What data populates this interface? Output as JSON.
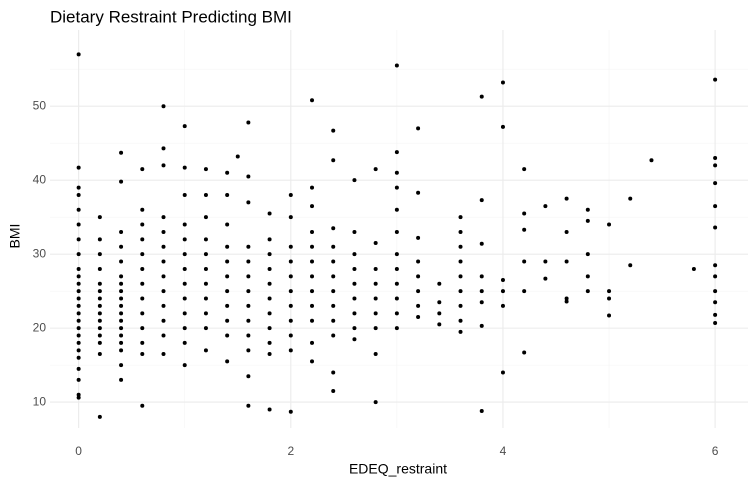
{
  "chart_data": {
    "type": "scatter",
    "title": "Dietary Restraint Predicting BMI",
    "x_label": "EDEQ_restraint",
    "y_label": "BMI",
    "color": "#000000",
    "grid": true,
    "xlim": [
      -0.27,
      6.31
    ],
    "ylim": [
      6.5,
      60.3
    ],
    "xticks": [
      0,
      2,
      4,
      6
    ],
    "yticks": [
      10,
      20,
      30,
      40,
      50
    ],
    "x": [
      0,
      0,
      0,
      0,
      0,
      0,
      0,
      0,
      0,
      0,
      0,
      0,
      0,
      0,
      0,
      0,
      0,
      0,
      0,
      0,
      0,
      0,
      0,
      0,
      0,
      0.2,
      0.2,
      0.2,
      0.2,
      0.2,
      0.2,
      0.2,
      0.2,
      0.2,
      0.2,
      0.2,
      0.2,
      0.2,
      0.2,
      0.2,
      0.4,
      0.4,
      0.4,
      0.4,
      0.4,
      0.4,
      0.4,
      0.4,
      0.4,
      0.4,
      0.4,
      0.4,
      0.4,
      0.4,
      0.4,
      0.4,
      0.4,
      0.4,
      0.6,
      0.6,
      0.6,
      0.6,
      0.6,
      0.6,
      0.6,
      0.6,
      0.6,
      0.6,
      0.6,
      0.6,
      0.6,
      0.8,
      0.8,
      0.8,
      0.8,
      0.8,
      0.8,
      0.8,
      0.8,
      0.8,
      0.8,
      0.8,
      0.8,
      0.8,
      1,
      1,
      1,
      1,
      1,
      1,
      1,
      1,
      1,
      1,
      1,
      1,
      1,
      1.2,
      1.2,
      1.2,
      1.2,
      1.2,
      1.2,
      1.2,
      1.2,
      1.2,
      1.2,
      1.2,
      1.4,
      1.4,
      1.4,
      1.4,
      1.4,
      1.4,
      1.4,
      1.4,
      1.4,
      1.4,
      1.4,
      1.5,
      1.6,
      1.6,
      1.6,
      1.6,
      1.6,
      1.6,
      1.6,
      1.6,
      1.6,
      1.6,
      1.6,
      1.6,
      1.6,
      1.8,
      1.8,
      1.8,
      1.8,
      1.8,
      1.8,
      1.8,
      1.8,
      1.8,
      1.8,
      1.8,
      2,
      2,
      2,
      2,
      2,
      2,
      2,
      2,
      2,
      2,
      2,
      2.2,
      2.2,
      2.2,
      2.2,
      2.2,
      2.2,
      2.2,
      2.2,
      2.2,
      2.2,
      2.2,
      2.2,
      2.4,
      2.4,
      2.4,
      2.4,
      2.4,
      2.4,
      2.4,
      2.4,
      2.4,
      2.4,
      2.4,
      2.4,
      2.6,
      2.6,
      2.6,
      2.6,
      2.6,
      2.6,
      2.6,
      2.6,
      2.6,
      2.8,
      2.8,
      2.8,
      2.8,
      2.8,
      2.8,
      2.8,
      2.8,
      2.8,
      3,
      3,
      3,
      3,
      3,
      3,
      3,
      3,
      3,
      3,
      3,
      3,
      3.2,
      3.2,
      3.2,
      3.2,
      3.2,
      3.2,
      3.2,
      3.2,
      3.4,
      3.4,
      3.4,
      3.4,
      3.6,
      3.6,
      3.6,
      3.6,
      3.6,
      3.6,
      3.6,
      3.6,
      3.6,
      3.8,
      3.8,
      3.8,
      3.8,
      3.8,
      3.8,
      3.8,
      3.8,
      4,
      4,
      4,
      4,
      4,
      4,
      4.2,
      4.2,
      4.2,
      4.2,
      4.2,
      4.2,
      4.4,
      4.4,
      4.4,
      4.6,
      4.6,
      4.6,
      4.6,
      4.6,
      4.8,
      4.8,
      4.8,
      4.8,
      4.8,
      5,
      5,
      5,
      5,
      5.2,
      5.2,
      5.4,
      5.8,
      6,
      6,
      6,
      6,
      6,
      6,
      6,
      6,
      6,
      6,
      6,
      6
    ],
    "y": [
      57,
      41.7,
      39,
      38,
      36,
      34,
      32,
      30,
      28,
      27,
      26,
      25,
      24,
      23,
      22,
      21,
      20,
      19,
      18,
      17,
      16,
      14.5,
      13,
      11,
      10.6,
      35,
      32,
      30,
      28,
      26,
      25,
      24,
      23,
      22,
      21,
      20,
      19,
      18,
      16.5,
      8,
      43.7,
      39.8,
      33,
      31,
      29,
      27,
      26,
      25,
      24,
      23,
      22,
      21,
      20,
      19,
      18,
      17,
      15,
      13,
      41.5,
      36,
      34,
      32,
      30,
      28,
      26,
      24,
      22,
      20,
      18,
      16.5,
      9.5,
      50,
      44.3,
      42,
      35,
      33,
      31,
      29,
      27,
      25,
      23,
      21,
      19,
      16.5,
      47.3,
      41.7,
      38,
      34,
      32,
      30,
      28,
      26,
      24,
      22,
      20,
      18,
      15,
      41.5,
      38,
      35,
      32,
      30,
      28,
      26,
      24,
      22,
      20,
      17,
      41,
      38,
      34,
      31,
      29,
      27,
      25,
      23,
      21,
      19,
      15.5,
      43.2,
      47.8,
      40.5,
      37,
      31,
      29,
      27,
      25,
      23,
      21,
      19,
      17,
      13.5,
      9.5,
      35.5,
      32,
      30,
      28,
      26,
      24,
      22,
      20,
      18,
      16.5,
      9,
      38,
      35,
      31,
      29,
      27,
      25,
      23,
      21,
      19,
      17,
      8.7,
      50.8,
      39,
      36.5,
      33,
      31,
      29,
      27,
      25,
      23,
      21,
      18,
      15.5,
      46.7,
      42.7,
      33.5,
      31,
      29,
      27,
      25,
      23,
      21,
      19,
      14,
      11.5,
      40,
      33,
      30,
      28,
      26,
      24,
      22,
      20,
      18.5,
      41.5,
      31.5,
      28,
      26,
      24,
      22,
      20,
      16.5,
      10,
      55.5,
      43.8,
      41,
      39,
      36,
      33,
      30,
      28,
      26,
      24,
      22,
      20,
      47,
      38.3,
      32.2,
      29,
      27,
      25,
      23,
      21.5,
      26,
      23.5,
      22,
      20.5,
      35,
      33,
      31,
      29,
      27,
      25,
      23,
      21,
      19.5,
      51.3,
      37.3,
      31.4,
      27,
      25,
      23.5,
      20.3,
      8.8,
      53.2,
      47.2,
      26.5,
      25,
      23,
      14,
      41.5,
      35.5,
      33.3,
      29,
      25,
      16.7,
      36.5,
      29,
      26.7,
      37.5,
      33,
      29,
      24,
      23.6,
      36,
      34.5,
      30,
      27,
      25,
      34,
      25,
      24,
      21.7,
      37.5,
      28.5,
      42.7,
      28,
      53.6,
      43,
      42,
      39.6,
      36.5,
      33.6,
      28.5,
      27,
      25,
      23.5,
      21.8,
      20.7
    ]
  }
}
